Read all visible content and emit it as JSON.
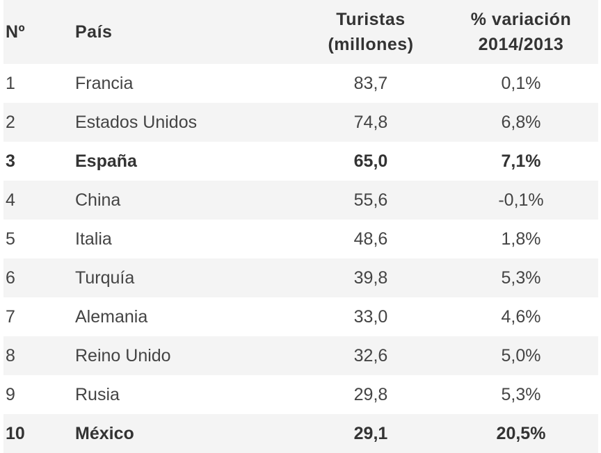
{
  "table": {
    "headers": {
      "rank": "Nº",
      "country": "País",
      "tourists_line1": "Turistas",
      "tourists_line2": "(millones)",
      "variation_line1": "% variación",
      "variation_line2": "2014/2013"
    },
    "rows": [
      {
        "rank": "1",
        "country": "Francia",
        "tourists": "83,7",
        "variation": "0,1%",
        "highlight": false
      },
      {
        "rank": "2",
        "country": "Estados Unidos",
        "tourists": "74,8",
        "variation": "6,8%",
        "highlight": false
      },
      {
        "rank": "3",
        "country": "España",
        "tourists": "65,0",
        "variation": "7,1%",
        "highlight": true
      },
      {
        "rank": "4",
        "country": "China",
        "tourists": "55,6",
        "variation": "-0,1%",
        "highlight": false
      },
      {
        "rank": "5",
        "country": "Italia",
        "tourists": "48,6",
        "variation": "1,8%",
        "highlight": false
      },
      {
        "rank": "6",
        "country": "Turquía",
        "tourists": "39,8",
        "variation": "5,3%",
        "highlight": false
      },
      {
        "rank": "7",
        "country": "Alemania",
        "tourists": "33,0",
        "variation": "4,6%",
        "highlight": false
      },
      {
        "rank": "8",
        "country": "Reino Unido",
        "tourists": "32,6",
        "variation": "5,0%",
        "highlight": false
      },
      {
        "rank": "9",
        "country": "Rusia",
        "tourists": "29,8",
        "variation": "5,3%",
        "highlight": false
      },
      {
        "rank": "10",
        "country": "México",
        "tourists": "29,1",
        "variation": "20,5%",
        "highlight": true
      }
    ]
  }
}
